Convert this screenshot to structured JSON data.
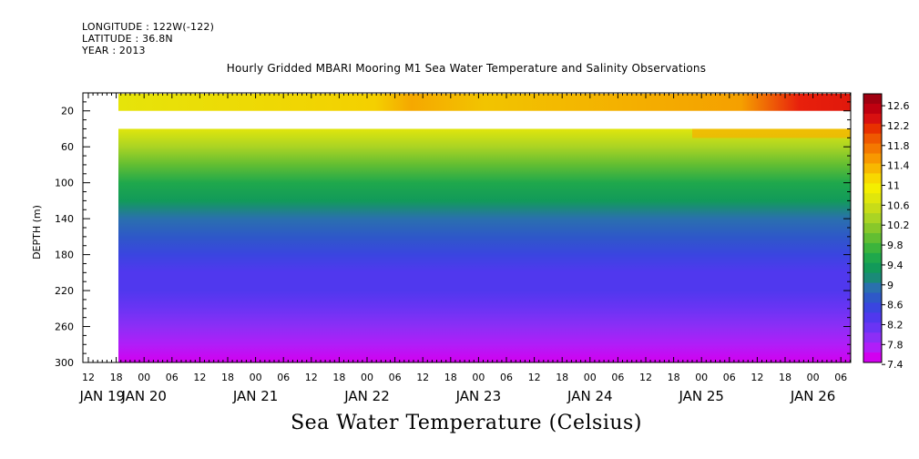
{
  "header": {
    "longitude": "LONGITUDE : 122W(-122)",
    "latitude": "LATITUDE : 36.8N",
    "year": "YEAR : 2013"
  },
  "chart_data": {
    "type": "heatmap",
    "title": "Hourly Gridded MBARI Mooring M1 Sea Water Temperature and Salinity Observations",
    "ylabel": "DEPTH (m)",
    "xlabel": "Sea Water Temperature (Celsius)",
    "yaxis": {
      "range": [
        0,
        300
      ],
      "inverted": true,
      "ticks": [
        20,
        60,
        100,
        140,
        180,
        220,
        260,
        300
      ]
    },
    "xaxis": {
      "hour_ticks": [
        "12",
        "18",
        "00",
        "06",
        "12",
        "18",
        "00",
        "06",
        "12",
        "18",
        "00",
        "06",
        "12",
        "18",
        "00",
        "06",
        "12",
        "18",
        "00",
        "06",
        "12",
        "18",
        "00",
        "06",
        "12",
        "18",
        "00",
        "06"
      ],
      "day_labels": [
        "JAN 19",
        "JAN 20",
        "JAN 21",
        "JAN 22",
        "JAN 23",
        "JAN 24",
        "JAN 25",
        "JAN 26"
      ]
    },
    "colorbar": {
      "labels": [
        "12.6",
        "12.2",
        "11.8",
        "11.4",
        "11",
        "10.6",
        "10.2",
        "9.8",
        "9.4",
        "9",
        "8.6",
        "8.2",
        "7.8",
        "7.4"
      ],
      "levels": [
        7.4,
        7.6,
        7.8,
        8.0,
        8.2,
        8.4,
        8.6,
        8.8,
        9.0,
        9.2,
        9.4,
        9.6,
        9.8,
        10.0,
        10.2,
        10.4,
        10.6,
        10.8,
        11.0,
        11.2,
        11.4,
        11.6,
        11.8,
        12.0,
        12.2,
        12.4,
        12.6,
        12.8
      ],
      "colors": [
        "#d200f0",
        "#b01ef8",
        "#8c2ef6",
        "#6a34f4",
        "#5038ee",
        "#3a45e0",
        "#2e58c8",
        "#2a70ae",
        "#1a8a78",
        "#129a5a",
        "#1fa84c",
        "#3cb43c",
        "#62be32",
        "#88c82a",
        "#aad424",
        "#c8dc18",
        "#e0e60c",
        "#f4ee00",
        "#f8d800",
        "#f8b800",
        "#f89800",
        "#f47800",
        "#ef5800",
        "#e83000",
        "#d81010",
        "#bf0010",
        "#a00010"
      ]
    },
    "depth_temperature_profile": {
      "depth_m": [
        0,
        10,
        20,
        40,
        60,
        80,
        100,
        120,
        140,
        160,
        180,
        200,
        220,
        240,
        260,
        280,
        300
      ],
      "temp_c": [
        11.0,
        11.0,
        11.0,
        10.6,
        10.2,
        9.8,
        9.5,
        9.2,
        8.9,
        8.7,
        8.5,
        8.3,
        8.2,
        8.0,
        7.9,
        7.7,
        7.5
      ]
    },
    "data_gap": {
      "start_depth_m": 20,
      "end_depth_m": 40
    }
  }
}
